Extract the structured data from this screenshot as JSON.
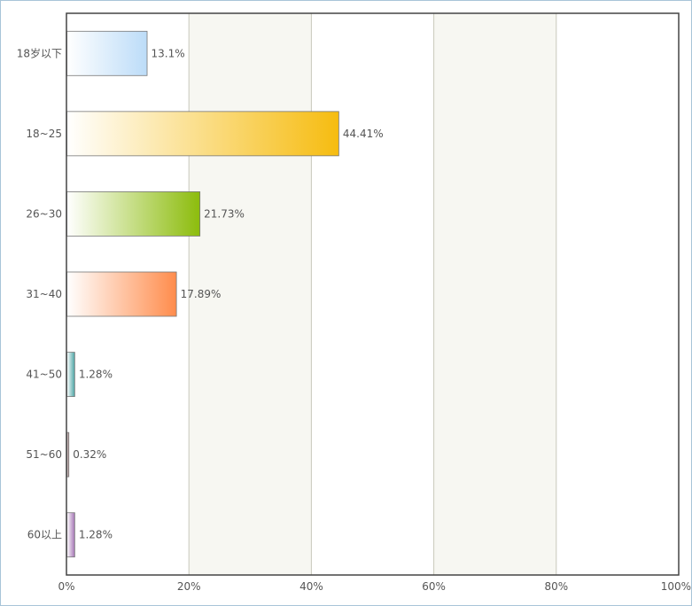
{
  "chart_data": {
    "type": "bar",
    "orientation": "horizontal",
    "title": "",
    "xlabel": "",
    "ylabel": "",
    "categories": [
      "18岁以下",
      "18~25",
      "26~30",
      "31~40",
      "41~50",
      "51~60",
      "60以上"
    ],
    "values": [
      13.1,
      44.41,
      21.73,
      17.89,
      1.28,
      0.32,
      1.28
    ],
    "value_labels": [
      "13.1%",
      "44.41%",
      "21.73%",
      "17.89%",
      "1.28%",
      "0.32%",
      "1.28%"
    ],
    "xlim": [
      0,
      100
    ],
    "ticks": [
      0,
      20,
      40,
      60,
      80,
      100
    ],
    "tick_labels": [
      "0%",
      "20%",
      "40%",
      "60%",
      "80%",
      "100%"
    ],
    "grid": true,
    "legend": "none",
    "bar_colors": [
      "#bcdcf8",
      "#f6bc10",
      "#8cbc0c",
      "#ff8c4c",
      "#4ca4a4",
      "#8c6464",
      "#a474b4"
    ],
    "band_color": "#f7f7f2"
  }
}
